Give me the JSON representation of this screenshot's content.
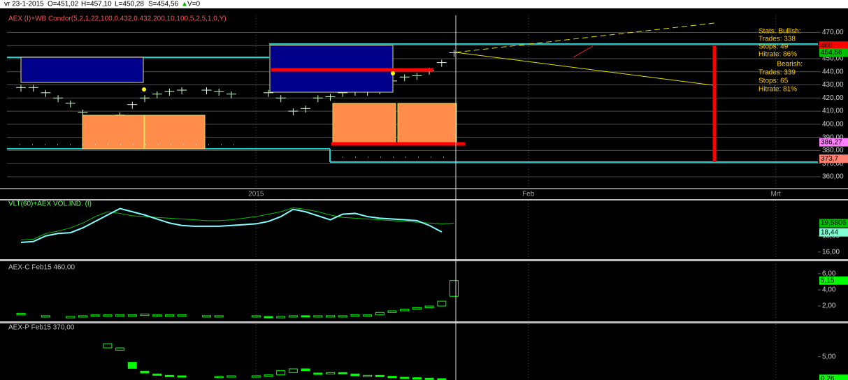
{
  "header": {
    "date": "vr 23-1-2015",
    "open": "O=451,02",
    "high": "H=457,10",
    "low": "L=450,28",
    "close": "S=454,56",
    "trend": "▲",
    "volume": "V=0"
  },
  "stats": [
    "Stats. Bullish:",
    "Trades: 338",
    "Stops: 49",
    "Hitrate: 86%",
    "Bearish:",
    "Trades: 339",
    "Stops: 65",
    "Hitrate: 81%"
  ],
  "chart_data": [
    {
      "type": "tick",
      "title": "AEX (I)+WB Condor(5,2,1,22,100,0.432,0.432,200,10,100,5,2,5,1,0,Y)",
      "color": "#d0ffd0",
      "categories": [
        null,
        null,
        null,
        null,
        null,
        null,
        null,
        null,
        null,
        null,
        null,
        null,
        null,
        null,
        null,
        null,
        null,
        null,
        null,
        "2015",
        null,
        null,
        null,
        null,
        null,
        null,
        null,
        null,
        null,
        null,
        null,
        null,
        null,
        null,
        null,
        null,
        null,
        null,
        null,
        null,
        null,
        "Feb",
        null,
        null,
        null,
        null,
        null,
        null,
        null,
        null,
        null,
        null,
        null,
        null,
        null,
        null,
        null,
        null,
        null,
        null,
        null,
        "Mrt"
      ],
      "values": [
        428,
        428,
        424,
        420,
        416,
        409,
        400,
        400,
        407,
        415,
        420,
        423,
        425,
        426,
        null,
        426,
        425,
        423,
        null,
        null,
        424,
        420,
        410,
        412,
        420,
        421,
        424,
        425,
        425,
        426,
        433,
        436,
        437,
        441,
        447,
        454.56,
        null,
        null,
        null,
        null,
        null,
        null,
        null,
        null,
        null,
        null,
        null,
        null,
        null,
        null,
        null,
        null,
        null,
        null,
        null,
        null,
        null,
        null,
        null,
        null,
        null,
        null
      ],
      "ylim": [
        352,
        483
      ],
      "yticks": [
        {
          "value": 470,
          "label": "470,00"
        },
        {
          "value": 460,
          "label": "460,00"
        },
        {
          "value": 450,
          "label": "450,00"
        },
        {
          "value": 440,
          "label": "440,00"
        },
        {
          "value": 430,
          "label": "430,00"
        },
        {
          "value": 420,
          "label": "420,00"
        },
        {
          "value": 410,
          "label": "410,00"
        },
        {
          "value": 400,
          "label": "400,00"
        },
        {
          "value": 390,
          "label": "390,00"
        },
        {
          "value": 380,
          "label": "380,00"
        },
        {
          "value": 370,
          "label": "370,00"
        },
        {
          "value": 360,
          "label": "360,00"
        }
      ],
      "grid": true,
      "badges": [
        {
          "value": 460,
          "label": "460",
          "color": "#ff0000"
        },
        {
          "value": 454.56,
          "label": "454,56",
          "color": "#00c000"
        },
        {
          "value": 386.27,
          "label": "386,27",
          "color": "#ff80ff"
        },
        {
          "value": 373.7,
          "label": "373,7",
          "color": "#ff8070"
        }
      ]
    },
    {
      "type": "line",
      "title": "VLT(60)+AEX VOL.IND. (I)",
      "series": [
        {
          "color": "#00c000",
          "values": [
            17.5,
            17.6,
            18.3,
            18.6,
            19.0,
            19.6,
            20.4,
            21.0,
            20.8,
            20.5,
            20.4,
            20.3,
            20.2,
            20.1,
            20.0,
            19.9,
            19.9,
            20.0,
            20.2,
            20.4,
            20.7,
            21.0,
            21.5,
            21.3,
            21.0,
            20.6,
            20.3,
            20.2,
            20.1,
            20.0,
            19.9,
            19.8,
            19.7,
            19.6,
            19.5,
            19.58
          ]
        },
        {
          "color": "#80ffff",
          "values": [
            17.2,
            17.3,
            18.0,
            18.3,
            18.4,
            19.0,
            19.8,
            20.6,
            21.4,
            21.0,
            20.6,
            20.1,
            19.6,
            19.3,
            19.2,
            19.2,
            19.2,
            19.3,
            19.4,
            19.5,
            19.8,
            20.4,
            21.3,
            21.0,
            20.5,
            20.0,
            20.7,
            20.8,
            20.4,
            20.2,
            20.1,
            20.0,
            19.9,
            19.3,
            18.5,
            null
          ]
        }
      ],
      "ylim": [
        15.2,
        22.4
      ],
      "yticks": [
        {
          "value": 16,
          "label": "16,00"
        },
        {
          "value": 18,
          "label": "18,00"
        }
      ],
      "badges": [
        {
          "value": 19.5806,
          "label": "19,5806",
          "color": "#00c000"
        },
        {
          "value": 18.44,
          "label": "18,44",
          "color": "#80ffd0"
        }
      ]
    },
    {
      "type": "candlestick",
      "title": "AEX-C Feb15 460,00",
      "color": "#00ff00",
      "open": [
        0.9,
        null,
        0.8,
        null,
        0.7,
        0.7,
        0.8,
        0.8,
        0.9,
        0.8,
        0.9,
        0.9,
        0.9,
        0.9,
        null,
        0.8,
        0.8,
        null,
        null,
        0.8,
        0.7,
        0.6,
        0.7,
        0.8,
        0.7,
        0.8,
        0.8,
        0.8,
        0.9,
        0.9,
        1.2,
        1.4,
        1.6,
        1.8,
        2.0,
        3.2
      ],
      "close": [
        1.1,
        null,
        0.8,
        null,
        0.7,
        0.8,
        0.9,
        0.9,
        0.9,
        0.9,
        1.0,
        0.9,
        0.9,
        0.9,
        null,
        0.8,
        0.8,
        null,
        null,
        0.8,
        0.6,
        0.7,
        0.8,
        0.7,
        0.8,
        0.8,
        0.8,
        0.9,
        0.9,
        1.2,
        1.4,
        1.6,
        1.8,
        2.0,
        2.6,
        5.15
      ],
      "ylim": [
        0.1,
        7.2
      ],
      "yticks": [
        {
          "value": 2,
          "label": "2,00"
        },
        {
          "value": 4,
          "label": "4,00"
        },
        {
          "value": 6,
          "label": "6,00"
        }
      ],
      "badges": [
        {
          "value": 5.15,
          "label": "5,15",
          "color": "#00ff00"
        }
      ]
    },
    {
      "type": "candlestick",
      "title": "AEX-P Feb15 370,00",
      "color": "#00ff00",
      "open": [
        null,
        null,
        null,
        null,
        null,
        null,
        null,
        6.9,
        6.4,
        3.8,
        1.9,
        1.3,
        1.0,
        0.9,
        null,
        null,
        0.7,
        0.8,
        null,
        0.8,
        0.9,
        1.1,
        1.6,
        2.4,
        1.5,
        1.3,
        1.6,
        1.3,
        0.9,
        1.0,
        0.8,
        0.6,
        0.5,
        0.4,
        0.3,
        null
      ],
      "close": [
        null,
        null,
        null,
        null,
        null,
        null,
        null,
        7.8,
        6.9,
        2.5,
        1.5,
        1.1,
        0.9,
        0.8,
        null,
        null,
        0.8,
        0.9,
        null,
        0.9,
        1.1,
        2.0,
        2.4,
        2.0,
        1.3,
        1.6,
        1.3,
        0.9,
        1.0,
        0.8,
        0.6,
        0.5,
        0.4,
        0.3,
        0.26,
        null
      ],
      "ylim": [
        0,
        12
      ],
      "yticks": [
        {
          "value": 5,
          "label": "5,00"
        }
      ],
      "badges": [
        {
          "value": 0.26,
          "label": "0,26",
          "color": "#00ff00"
        }
      ]
    }
  ]
}
